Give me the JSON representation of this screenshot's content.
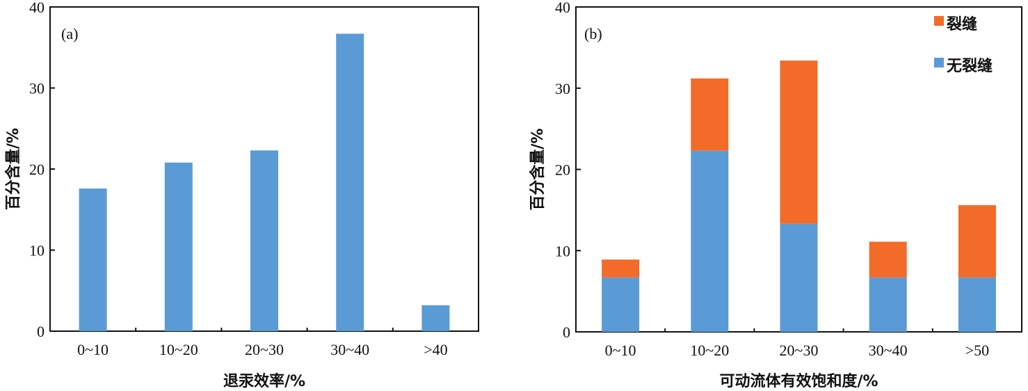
{
  "chart_data": [
    {
      "type": "bar",
      "panel_label": "(a)",
      "categories": [
        "0~10",
        "10~20",
        "20~30",
        "30~40",
        ">40"
      ],
      "series": [
        {
          "values": [
            17.6,
            20.8,
            22.3,
            36.7,
            3.2
          ],
          "color": "#5b9bd5"
        }
      ],
      "xlabel": "退汞效率/%",
      "ylabel": "百分含量/%",
      "ylim": [
        0,
        40
      ],
      "yticks": [
        0,
        10,
        20,
        30,
        40
      ],
      "grid": false,
      "legend": null
    },
    {
      "type": "bar",
      "stacked": true,
      "panel_label": "(b)",
      "categories": [
        "0~10",
        "10~20",
        "20~30",
        "30~40",
        ">50"
      ],
      "series": [
        {
          "name": "无裂缝",
          "values": [
            6.7,
            22.3,
            13.3,
            6.7,
            6.7
          ],
          "color": "#5b9bd5"
        },
        {
          "name": "裂缝",
          "values": [
            2.2,
            8.9,
            20.1,
            4.4,
            8.9
          ],
          "color": "#f26b29"
        }
      ],
      "xlabel": "可动流体有效饱和度/%",
      "ylabel": "百分含量/%",
      "ylim": [
        0,
        40
      ],
      "yticks": [
        0,
        10,
        20,
        30,
        40
      ],
      "grid": false,
      "legend": "top-right"
    }
  ]
}
